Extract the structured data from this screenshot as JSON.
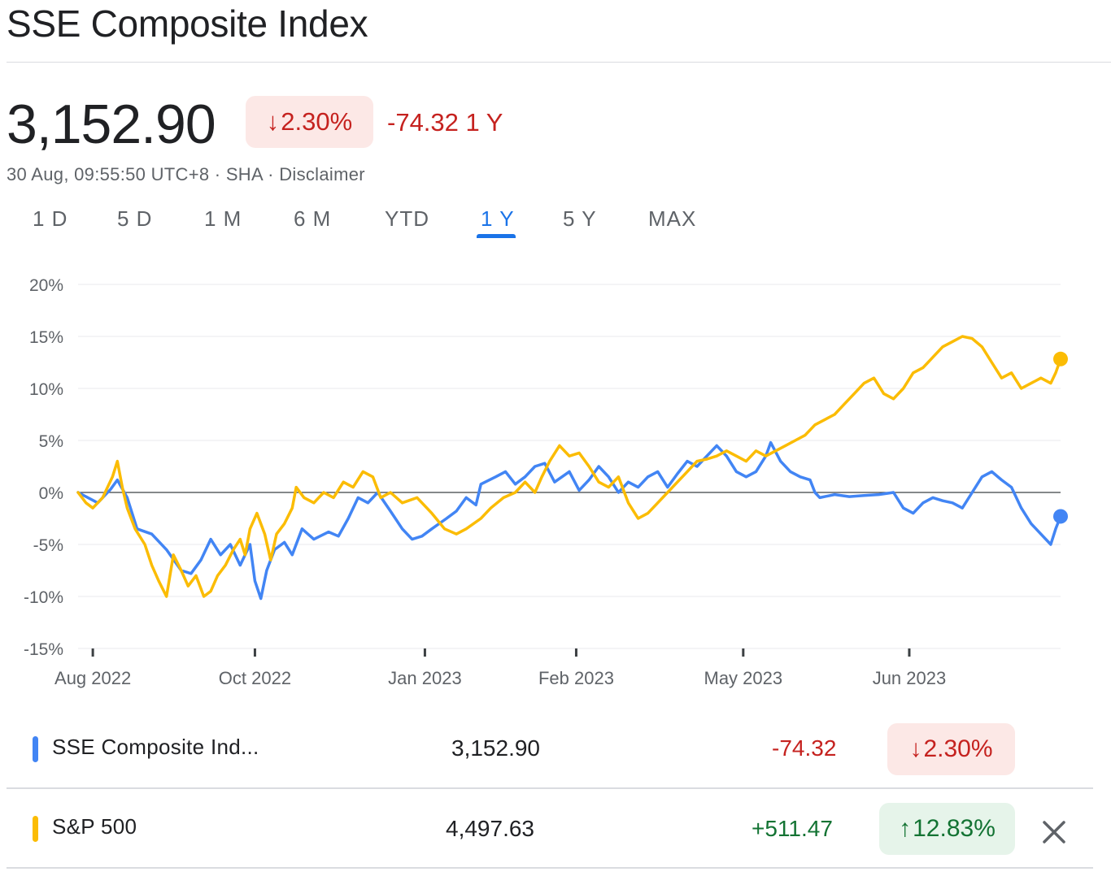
{
  "header": {
    "title": "SSE Composite Index",
    "price": "3,152.90",
    "percent_change": "2.30%",
    "arrow_down": "↓",
    "change_label": "-74.32 1 Y",
    "meta": "30 Aug, 09:55:50 UTC+8 · SHA · Disclaimer"
  },
  "tabs": [
    {
      "label": "1 D"
    },
    {
      "label": "5 D"
    },
    {
      "label": "1 M"
    },
    {
      "label": "6 M"
    },
    {
      "label": "YTD"
    },
    {
      "label": "1 Y"
    },
    {
      "label": "5 Y"
    },
    {
      "label": "MAX"
    }
  ],
  "active_tab": "1 Y",
  "chart_data": {
    "type": "line",
    "title": "",
    "xlabel": "",
    "ylabel": "",
    "ylim": [
      -15,
      20
    ],
    "y_ticks": [
      "20%",
      "15%",
      "10%",
      "5%",
      "0%",
      "-5%",
      "-10%",
      "-15%"
    ],
    "x_ticks": [
      "Aug 2022",
      "Oct 2022",
      "Jan 2023",
      "Feb 2023",
      "May 2023",
      "Jun 2023"
    ],
    "x_tick_positions": [
      0.015,
      0.18,
      0.353,
      0.507,
      0.677,
      0.846
    ],
    "x_domain": [
      0,
      1
    ],
    "series": [
      {
        "name": "SSE Composite Index",
        "color": "#4285f4",
        "points": [
          [
            0.0,
            0.0
          ],
          [
            0.02,
            -1.0
          ],
          [
            0.033,
            0.3
          ],
          [
            0.04,
            1.2
          ],
          [
            0.05,
            -0.5
          ],
          [
            0.06,
            -3.5
          ],
          [
            0.075,
            -4.0
          ],
          [
            0.09,
            -5.5
          ],
          [
            0.105,
            -7.5
          ],
          [
            0.115,
            -7.8
          ],
          [
            0.125,
            -6.5
          ],
          [
            0.135,
            -4.5
          ],
          [
            0.145,
            -6.0
          ],
          [
            0.155,
            -5.0
          ],
          [
            0.165,
            -7.0
          ],
          [
            0.175,
            -5.0
          ],
          [
            0.18,
            -8.5
          ],
          [
            0.186,
            -10.2
          ],
          [
            0.192,
            -7.5
          ],
          [
            0.2,
            -5.5
          ],
          [
            0.21,
            -4.8
          ],
          [
            0.218,
            -6.0
          ],
          [
            0.228,
            -3.5
          ],
          [
            0.24,
            -4.5
          ],
          [
            0.255,
            -3.8
          ],
          [
            0.265,
            -4.2
          ],
          [
            0.275,
            -2.5
          ],
          [
            0.285,
            -0.5
          ],
          [
            0.295,
            -1.0
          ],
          [
            0.305,
            0.0
          ],
          [
            0.318,
            -1.8
          ],
          [
            0.33,
            -3.5
          ],
          [
            0.34,
            -4.5
          ],
          [
            0.35,
            -4.2
          ],
          [
            0.36,
            -3.5
          ],
          [
            0.375,
            -2.5
          ],
          [
            0.385,
            -1.8
          ],
          [
            0.395,
            -0.5
          ],
          [
            0.405,
            -1.2
          ],
          [
            0.41,
            0.8
          ],
          [
            0.425,
            1.5
          ],
          [
            0.435,
            2.0
          ],
          [
            0.445,
            0.8
          ],
          [
            0.455,
            1.5
          ],
          [
            0.465,
            2.5
          ],
          [
            0.475,
            2.8
          ],
          [
            0.485,
            1.0
          ],
          [
            0.5,
            2.0
          ],
          [
            0.51,
            0.2
          ],
          [
            0.52,
            1.2
          ],
          [
            0.53,
            2.5
          ],
          [
            0.54,
            1.5
          ],
          [
            0.55,
            0.0
          ],
          [
            0.56,
            1.0
          ],
          [
            0.57,
            0.5
          ],
          [
            0.58,
            1.5
          ],
          [
            0.59,
            2.0
          ],
          [
            0.6,
            0.5
          ],
          [
            0.61,
            1.8
          ],
          [
            0.62,
            3.0
          ],
          [
            0.63,
            2.5
          ],
          [
            0.64,
            3.5
          ],
          [
            0.65,
            4.5
          ],
          [
            0.66,
            3.5
          ],
          [
            0.67,
            2.0
          ],
          [
            0.68,
            1.5
          ],
          [
            0.69,
            2.0
          ],
          [
            0.7,
            3.5
          ],
          [
            0.705,
            4.8
          ],
          [
            0.715,
            3.0
          ],
          [
            0.725,
            2.0
          ],
          [
            0.735,
            1.5
          ],
          [
            0.745,
            1.2
          ],
          [
            0.75,
            0.0
          ],
          [
            0.755,
            -0.5
          ],
          [
            0.77,
            -0.2
          ],
          [
            0.785,
            -0.4
          ],
          [
            0.8,
            -0.3
          ],
          [
            0.815,
            -0.2
          ],
          [
            0.83,
            0.0
          ],
          [
            0.84,
            -1.5
          ],
          [
            0.85,
            -2.0
          ],
          [
            0.86,
            -1.0
          ],
          [
            0.87,
            -0.5
          ],
          [
            0.88,
            -0.8
          ],
          [
            0.89,
            -1.0
          ],
          [
            0.9,
            -1.5
          ],
          [
            0.91,
            0.0
          ],
          [
            0.92,
            1.5
          ],
          [
            0.93,
            2.0
          ],
          [
            0.94,
            1.2
          ],
          [
            0.95,
            0.5
          ],
          [
            0.96,
            -1.5
          ],
          [
            0.97,
            -3.0
          ],
          [
            0.98,
            -4.0
          ],
          [
            0.99,
            -5.0
          ],
          [
            0.995,
            -3.5
          ],
          [
            1.0,
            -2.3
          ]
        ]
      },
      {
        "name": "S&P 500",
        "color": "#fbbc04",
        "points": [
          [
            0.0,
            0.0
          ],
          [
            0.008,
            -1.0
          ],
          [
            0.015,
            -1.5
          ],
          [
            0.025,
            -0.5
          ],
          [
            0.035,
            1.5
          ],
          [
            0.04,
            3.0
          ],
          [
            0.045,
            0.5
          ],
          [
            0.05,
            -1.5
          ],
          [
            0.058,
            -3.5
          ],
          [
            0.068,
            -5.0
          ],
          [
            0.075,
            -7.0
          ],
          [
            0.082,
            -8.5
          ],
          [
            0.09,
            -10.0
          ],
          [
            0.097,
            -6.0
          ],
          [
            0.105,
            -7.5
          ],
          [
            0.112,
            -9.0
          ],
          [
            0.12,
            -8.0
          ],
          [
            0.128,
            -10.0
          ],
          [
            0.135,
            -9.5
          ],
          [
            0.142,
            -8.0
          ],
          [
            0.15,
            -7.0
          ],
          [
            0.158,
            -5.5
          ],
          [
            0.165,
            -4.5
          ],
          [
            0.17,
            -6.0
          ],
          [
            0.175,
            -3.5
          ],
          [
            0.182,
            -2.0
          ],
          [
            0.19,
            -4.0
          ],
          [
            0.196,
            -6.5
          ],
          [
            0.202,
            -4.0
          ],
          [
            0.21,
            -3.0
          ],
          [
            0.218,
            -1.5
          ],
          [
            0.222,
            0.5
          ],
          [
            0.23,
            -0.5
          ],
          [
            0.24,
            -1.0
          ],
          [
            0.25,
            0.0
          ],
          [
            0.26,
            -0.5
          ],
          [
            0.27,
            1.0
          ],
          [
            0.28,
            0.5
          ],
          [
            0.29,
            2.0
          ],
          [
            0.3,
            1.5
          ],
          [
            0.308,
            -0.5
          ],
          [
            0.318,
            0.0
          ],
          [
            0.33,
            -1.0
          ],
          [
            0.345,
            -0.5
          ],
          [
            0.36,
            -2.0
          ],
          [
            0.373,
            -3.5
          ],
          [
            0.385,
            -4.0
          ],
          [
            0.395,
            -3.5
          ],
          [
            0.41,
            -2.5
          ],
          [
            0.42,
            -1.5
          ],
          [
            0.433,
            -0.5
          ],
          [
            0.445,
            0.0
          ],
          [
            0.455,
            1.0
          ],
          [
            0.465,
            0.0
          ],
          [
            0.472,
            1.5
          ],
          [
            0.48,
            3.0
          ],
          [
            0.49,
            4.5
          ],
          [
            0.5,
            3.5
          ],
          [
            0.51,
            3.8
          ],
          [
            0.52,
            2.5
          ],
          [
            0.53,
            1.0
          ],
          [
            0.54,
            0.5
          ],
          [
            0.55,
            1.5
          ],
          [
            0.56,
            -1.0
          ],
          [
            0.57,
            -2.5
          ],
          [
            0.58,
            -2.0
          ],
          [
            0.59,
            -1.0
          ],
          [
            0.6,
            0.0
          ],
          [
            0.61,
            1.0
          ],
          [
            0.62,
            2.0
          ],
          [
            0.63,
            3.0
          ],
          [
            0.64,
            3.2
          ],
          [
            0.65,
            3.5
          ],
          [
            0.66,
            4.0
          ],
          [
            0.67,
            3.5
          ],
          [
            0.68,
            3.0
          ],
          [
            0.69,
            4.0
          ],
          [
            0.7,
            3.5
          ],
          [
            0.71,
            4.0
          ],
          [
            0.72,
            4.5
          ],
          [
            0.73,
            5.0
          ],
          [
            0.74,
            5.5
          ],
          [
            0.75,
            6.5
          ],
          [
            0.76,
            7.0
          ],
          [
            0.77,
            7.5
          ],
          [
            0.78,
            8.5
          ],
          [
            0.79,
            9.5
          ],
          [
            0.8,
            10.5
          ],
          [
            0.81,
            11.0
          ],
          [
            0.82,
            9.5
          ],
          [
            0.83,
            9.0
          ],
          [
            0.84,
            10.0
          ],
          [
            0.85,
            11.5
          ],
          [
            0.86,
            12.0
          ],
          [
            0.87,
            13.0
          ],
          [
            0.88,
            14.0
          ],
          [
            0.89,
            14.5
          ],
          [
            0.9,
            15.0
          ],
          [
            0.91,
            14.8
          ],
          [
            0.92,
            14.0
          ],
          [
            0.93,
            12.5
          ],
          [
            0.94,
            11.0
          ],
          [
            0.95,
            11.5
          ],
          [
            0.96,
            10.0
          ],
          [
            0.97,
            10.5
          ],
          [
            0.98,
            11.0
          ],
          [
            0.99,
            10.5
          ],
          [
            0.995,
            11.5
          ],
          [
            1.0,
            12.83
          ]
        ]
      }
    ]
  },
  "comparison_rows": [
    {
      "name": "SSE Composite Ind...",
      "price": "3,152.90",
      "change": "-74.32",
      "arrow": "↓",
      "percent": "2.30%",
      "color": "#4285f4",
      "direction": "neg"
    },
    {
      "name": "S&P 500",
      "price": "4,497.63",
      "change": "+511.47",
      "arrow": "↑",
      "percent": "12.83%",
      "color": "#fbbc04",
      "direction": "pos"
    }
  ]
}
